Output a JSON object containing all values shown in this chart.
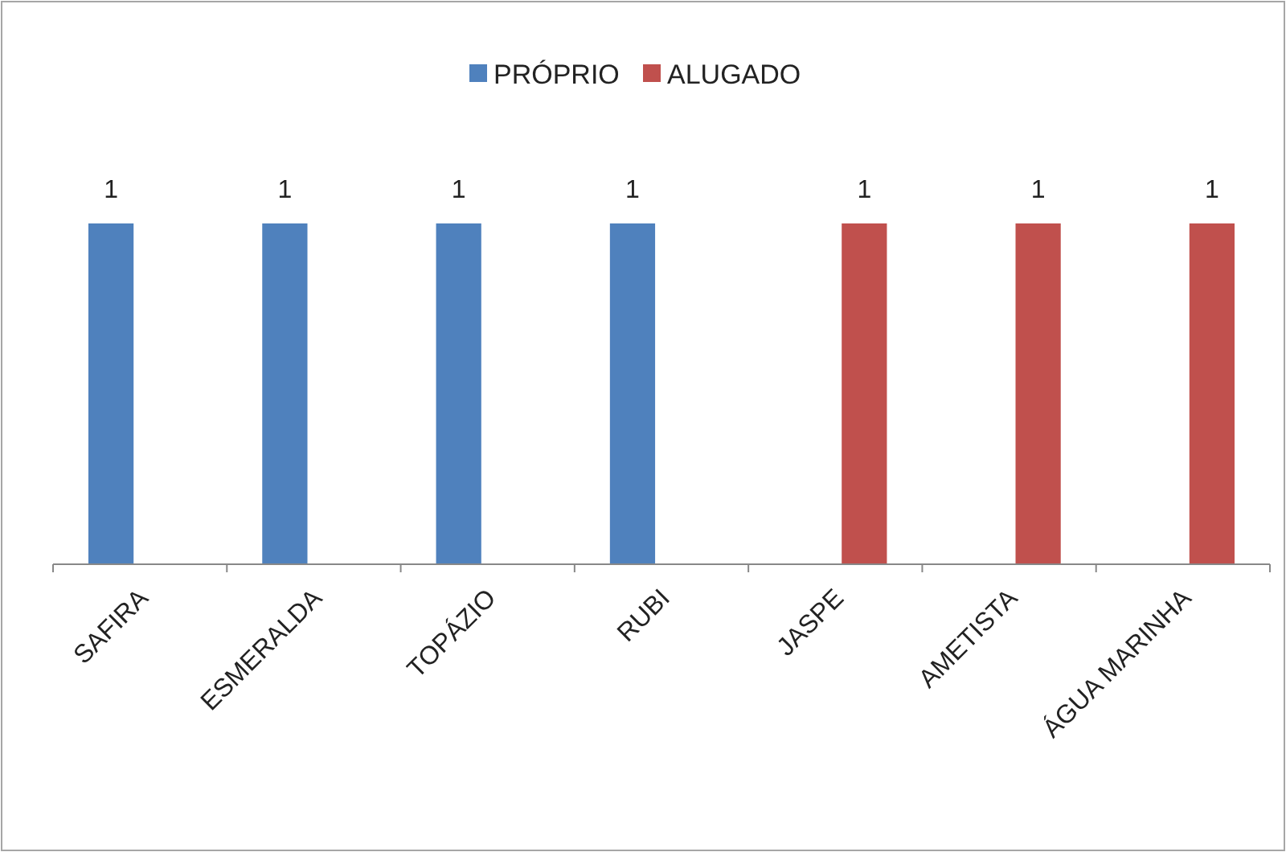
{
  "chart_data": {
    "type": "bar",
    "categories": [
      "SAFIRA",
      "ESMERALDA",
      "TOPÁZIO",
      "RUBI",
      "JASPE",
      "AMETISTA",
      "ÁGUA MARINHA"
    ],
    "series": [
      {
        "name": "PRÓPRIO",
        "color": "#4f81bd",
        "values": [
          1,
          1,
          1,
          1,
          null,
          null,
          null
        ]
      },
      {
        "name": "ALUGADO",
        "color": "#c0504d",
        "values": [
          null,
          null,
          null,
          null,
          1,
          1,
          1
        ]
      }
    ],
    "data_labels": true,
    "legend": "top",
    "grid": false
  }
}
